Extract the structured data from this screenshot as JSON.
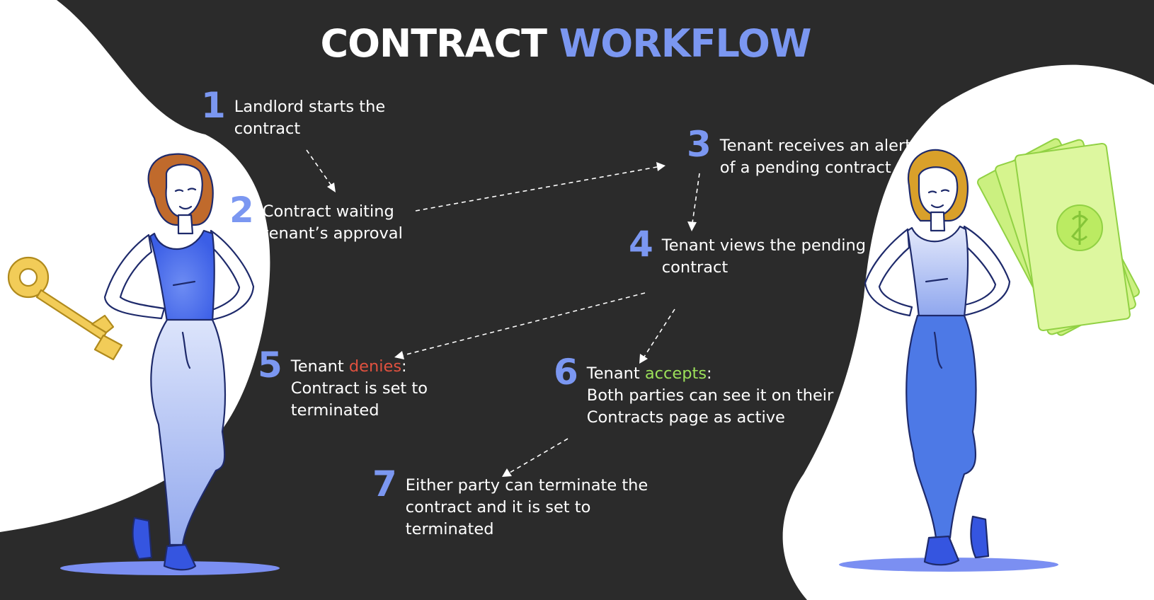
{
  "title": {
    "main": "CONTRACT",
    "accent": "WORKFLOW"
  },
  "colors": {
    "background": "#2b2b2b",
    "accent": "#7b97f1",
    "deny": "#e0513f",
    "accept": "#9be05a"
  },
  "steps": [
    {
      "number": "1",
      "lines": [
        "Landlord starts the",
        "contract"
      ]
    },
    {
      "number": "2",
      "lines": [
        "Contract waiting",
        "tenant’s approval"
      ]
    },
    {
      "number": "3",
      "lines": [
        "Tenant receives an alert",
        "of a pending contract"
      ]
    },
    {
      "number": "4",
      "lines": [
        "Tenant views the pending",
        "contract"
      ]
    },
    {
      "number": "5",
      "prefix": "Tenant ",
      "keyword": "denies",
      "suffix": ":",
      "lines": [
        "Contract is set to",
        "terminated"
      ]
    },
    {
      "number": "6",
      "prefix": "Tenant ",
      "keyword": "accepts",
      "suffix": ":",
      "lines": [
        "Both parties can see it on their",
        "Contracts page as active"
      ]
    },
    {
      "number": "7",
      "lines": [
        "Either party can terminate the",
        "contract and it is set to",
        "terminated"
      ]
    }
  ],
  "illustrations": {
    "left": {
      "figure": "landlord-woman",
      "prop": "key-icon"
    },
    "right": {
      "figure": "tenant-woman",
      "prop": "money-icon"
    }
  }
}
